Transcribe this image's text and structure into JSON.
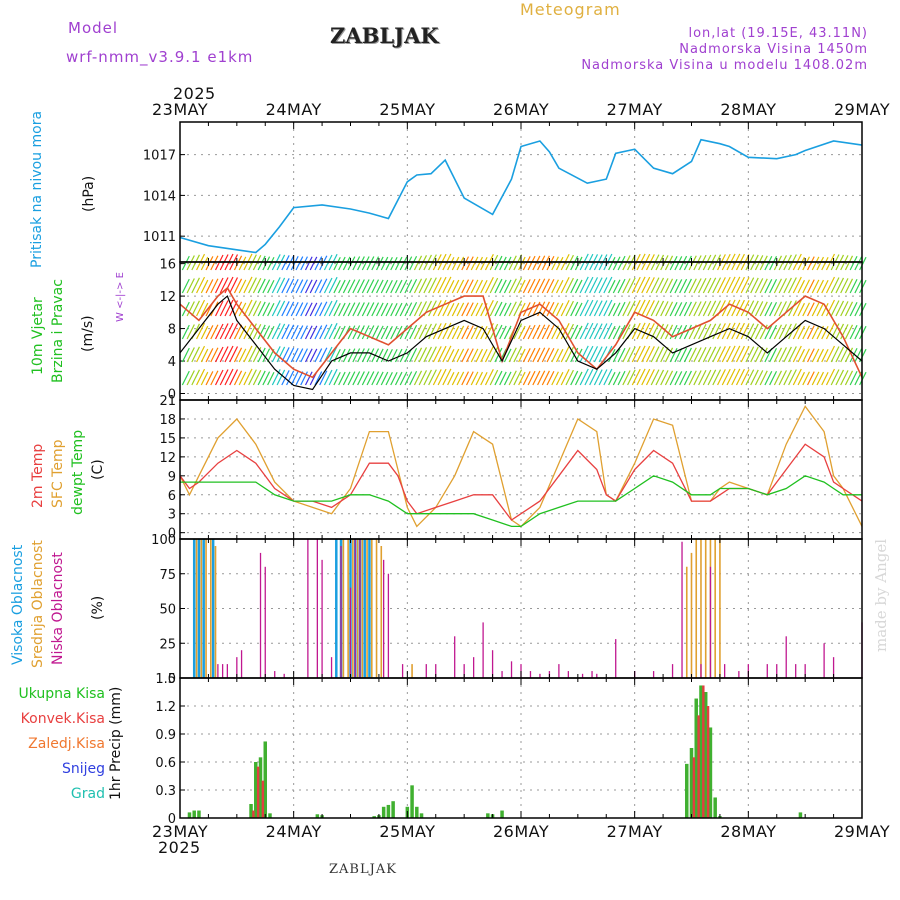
{
  "header": {
    "model_label": "Model",
    "model_name": "wrf-nmm_v3.9.1 e1km",
    "title": "ZABLJAK",
    "meteogram_label": "Meteogram",
    "lonlat": "lon,lat (19.15E, 43.11N)",
    "altitude": "Nadmorska Visina 1450m",
    "model_altitude": "Nadmorska Visina u modelu 1408.02m"
  },
  "time_axis": {
    "year": "2025",
    "labels": [
      "23MAY",
      "24MAY",
      "25MAY",
      "26MAY",
      "27MAY",
      "28MAY",
      "29MAY"
    ]
  },
  "panels": {
    "pressure": {
      "label": "Pritisak na nivou mora",
      "unit": "(hPa)"
    },
    "wind": {
      "label1": "10m Vjetar",
      "label2": "Brzina i Pravac",
      "unit": "(m/s)",
      "compass": "W <-|-> E"
    },
    "temp": {
      "label1": "2m Temp",
      "label2": "SFC Temp",
      "label3": "dewpt Temp",
      "unit": "(C)"
    },
    "cloud": {
      "label1": "Visoka Oblacnost",
      "label2": "Srednja Oblacnost",
      "label3": "Niska Oblacnost",
      "unit": "(%)"
    },
    "precip": {
      "unit": "1hr Precip (mm)",
      "legend": [
        "Ukupna Kisa",
        "Konvek.Kisa",
        "Zaledj.Kisa",
        "Snijeg",
        "Grad"
      ]
    }
  },
  "watermark": "made by Angel",
  "footer": "ZABLJAK",
  "colors": {
    "pressure": "#1a9fe0",
    "t2m": "#e84040",
    "tsfc": "#e0a030",
    "dewpt": "#20c020",
    "gust": "#e05030",
    "wind_mean": "#000000",
    "high": "#1a9fe0",
    "mid": "#e0a030",
    "low": "#c01890",
    "precip_total": "#40b030",
    "precip_conv": "#e04040"
  },
  "chart_data": [
    {
      "type": "line",
      "ylabel": "(hPa)",
      "yticks": [
        1011,
        1014,
        1017
      ],
      "ylim": [
        1009.1,
        1019.4
      ],
      "x": [
        0,
        6,
        12,
        16,
        18,
        21,
        24,
        30,
        36,
        40,
        44,
        48,
        50,
        53,
        56,
        60,
        66,
        70,
        72,
        76,
        78,
        80,
        86,
        90,
        92,
        96,
        100,
        104,
        108,
        110,
        114,
        116,
        120,
        126,
        130,
        132,
        138,
        144
      ],
      "series": [
        {
          "name": "Pritisak na nivou mora",
          "values": [
            1010.9,
            1010.3,
            1010.0,
            1009.8,
            1010.4,
            1011.7,
            1013.1,
            1013.3,
            1013.0,
            1012.7,
            1012.3,
            1015.0,
            1015.5,
            1015.6,
            1016.6,
            1013.8,
            1012.6,
            1015.2,
            1017.6,
            1018.0,
            1017.2,
            1016.0,
            1014.9,
            1015.2,
            1017.1,
            1017.4,
            1016.0,
            1015.6,
            1016.5,
            1018.1,
            1017.8,
            1017.6,
            1016.8,
            1016.7,
            1017.0,
            1017.3,
            1018.0,
            1017.7
          ]
        }
      ]
    },
    {
      "type": "line",
      "ylabel": "(m/s)",
      "yticks": [
        0,
        4,
        8,
        12,
        16
      ],
      "ylim": [
        -0.8,
        16.2
      ],
      "x": [
        0,
        4,
        8,
        10,
        12,
        16,
        20,
        24,
        28,
        32,
        36,
        40,
        44,
        48,
        52,
        56,
        60,
        64,
        68,
        72,
        76,
        80,
        84,
        88,
        92,
        96,
        100,
        104,
        108,
        112,
        116,
        120,
        124,
        128,
        132,
        136,
        140,
        144
      ],
      "series": [
        {
          "name": "gust",
          "values": [
            11,
            9,
            12,
            13,
            11,
            8,
            5,
            3,
            2,
            5,
            8,
            7,
            6,
            8,
            10,
            11,
            12,
            12,
            4,
            10,
            11,
            9,
            5,
            3,
            6,
            10,
            9,
            7,
            8,
            9,
            11,
            10,
            8,
            10,
            12,
            11,
            7,
            2
          ]
        },
        {
          "name": "mean",
          "values": [
            5,
            8,
            11,
            12,
            9,
            6,
            3,
            1,
            0.5,
            4,
            5,
            5,
            4,
            5,
            7,
            8,
            9,
            8,
            4,
            9,
            10,
            8,
            4,
            3,
            5,
            8,
            7,
            5,
            6,
            7,
            8,
            7,
            5,
            7,
            9,
            8,
            6,
            4
          ]
        }
      ]
    },
    {
      "type": "line",
      "ylabel": "(C)",
      "yticks": [
        0,
        3,
        6,
        9,
        12,
        15,
        18,
        21
      ],
      "ylim": [
        -1,
        21
      ],
      "x": [
        0,
        2,
        4,
        8,
        12,
        16,
        20,
        24,
        28,
        32,
        36,
        40,
        44,
        46,
        48,
        50,
        54,
        58,
        62,
        66,
        70,
        72,
        76,
        80,
        84,
        88,
        90,
        92,
        96,
        100,
        104,
        108,
        112,
        114,
        116,
        120,
        124,
        128,
        132,
        136,
        138,
        140,
        144
      ],
      "series": [
        {
          "name": "2m Temp",
          "values": [
            9,
            7,
            8,
            11,
            13,
            11,
            7,
            5,
            5,
            4,
            6,
            11,
            11,
            9,
            5,
            3,
            4,
            5,
            6,
            6,
            2,
            3,
            5,
            9,
            13,
            10,
            6,
            5,
            10,
            13,
            11,
            5,
            5,
            6,
            7,
            7,
            6,
            10,
            14,
            12,
            8,
            7,
            5
          ]
        },
        {
          "name": "SFC Temp",
          "values": [
            9,
            6,
            9,
            15,
            18,
            14,
            8,
            5,
            4,
            3,
            7,
            16,
            16,
            10,
            4,
            1,
            4,
            9,
            16,
            14,
            2,
            1,
            4,
            11,
            18,
            16,
            6,
            5,
            11,
            18,
            17,
            5,
            5,
            7,
            8,
            7,
            6,
            14,
            20,
            16,
            9,
            7,
            1
          ]
        },
        {
          "name": "dewpt Temp",
          "values": [
            8,
            8,
            8,
            8,
            8,
            8,
            6,
            5,
            5,
            5,
            6,
            6,
            5,
            4,
            3,
            3,
            3,
            3,
            3,
            2,
            1,
            1,
            3,
            4,
            5,
            5,
            5,
            5,
            7,
            9,
            8,
            6,
            6,
            7,
            7,
            7,
            6,
            7,
            9,
            8,
            7,
            6,
            6
          ]
        }
      ]
    },
    {
      "type": "bar",
      "ylabel": "(%)",
      "yticks": [
        0,
        25,
        50,
        75,
        100
      ],
      "ylim": [
        0,
        100
      ],
      "series": [
        {
          "name": "Visoka Oblacnost",
          "x": [
            3,
            4,
            5,
            7,
            33,
            34,
            36,
            37,
            38,
            39,
            40
          ],
          "values": [
            100,
            100,
            100,
            100,
            100,
            100,
            100,
            100,
            100,
            100,
            100
          ]
        },
        {
          "name": "Srednja Oblacnost",
          "x": [
            3.5,
            4.5,
            5.5,
            6.5,
            7.5,
            34.5,
            35.5,
            36.5,
            37.5,
            38.5,
            39.5,
            40.5,
            41.5,
            42.5,
            49,
            107,
            108,
            109,
            110,
            111,
            112,
            113,
            114
          ],
          "values": [
            100,
            100,
            100,
            100,
            95,
            100,
            100,
            100,
            100,
            100,
            100,
            100,
            100,
            95,
            10,
            80,
            90,
            100,
            100,
            100,
            100,
            100,
            100
          ]
        },
        {
          "name": "Niska Oblacnost",
          "x": [
            8,
            9,
            10,
            12,
            13,
            17,
            18,
            20,
            22,
            27,
            29,
            30,
            32,
            34,
            36,
            37,
            38,
            43,
            44,
            47,
            52,
            54,
            58,
            60,
            62,
            64,
            66,
            68,
            70,
            72,
            74,
            76,
            78,
            80,
            82,
            85,
            87,
            88,
            92,
            96,
            100,
            104,
            106,
            110,
            112,
            115,
            118,
            120,
            124,
            126,
            128,
            130,
            132,
            136,
            138,
            144
          ],
          "values": [
            10,
            10,
            10,
            15,
            20,
            90,
            80,
            5,
            3,
            100,
            100,
            85,
            15,
            95,
            65,
            100,
            100,
            85,
            75,
            10,
            10,
            10,
            30,
            10,
            15,
            40,
            20,
            5,
            12,
            10,
            5,
            3,
            5,
            10,
            5,
            3,
            5,
            3,
            28,
            5,
            5,
            10,
            98,
            10,
            80,
            10,
            5,
            10,
            10,
            10,
            30,
            10,
            10,
            25,
            15,
            40
          ]
        }
      ]
    },
    {
      "type": "bar",
      "ylabel": "1hr Precip (mm)",
      "yticks": [
        0,
        0.3,
        0.6,
        0.9,
        1.2,
        1.5
      ],
      "ylim": [
        0,
        1.5
      ],
      "series": [
        {
          "name": "Ukupna Kisa",
          "x": [
            2,
            3,
            4,
            15,
            16,
            17,
            18,
            19,
            29,
            30,
            41,
            42,
            43,
            44,
            45,
            48,
            49,
            50,
            51,
            65,
            66,
            68,
            107,
            108,
            109,
            110,
            111,
            112,
            113,
            114,
            131
          ],
          "values": [
            0.06,
            0.08,
            0.08,
            0.15,
            0.6,
            0.65,
            0.82,
            0.05,
            0.04,
            0.03,
            0.02,
            0.03,
            0.12,
            0.14,
            0.18,
            0.12,
            0.35,
            0.12,
            0.05,
            0.05,
            0.04,
            0.08,
            0.58,
            0.75,
            1.28,
            1.42,
            1.35,
            0.97,
            0.22,
            0.02,
            0.06
          ]
        },
        {
          "name": "Konvek.Kisa",
          "x": [
            15.5,
            16.5,
            17.5,
            108.5,
            109.5,
            110.5,
            111.5
          ],
          "values": [
            0.08,
            0.55,
            0.4,
            0.65,
            1.1,
            1.42,
            1.2
          ]
        }
      ]
    }
  ]
}
